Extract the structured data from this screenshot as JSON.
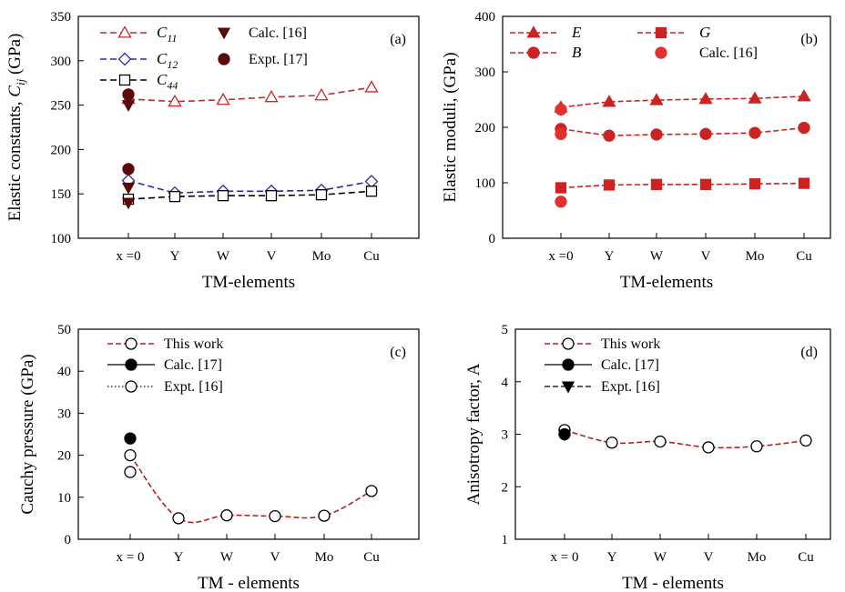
{
  "chart_data": [
    {
      "type": "line",
      "panel_label": "(a)",
      "xlabel": "TM-elements",
      "ylabel_main": "Elastic constants, ",
      "ylabel_sym": "C",
      "ylabel_sub": "ij",
      "ylabel_unit": " (GPa)",
      "categories": [
        "x =0",
        "Y",
        "W",
        "V",
        "Mo",
        "Cu"
      ],
      "ylim": [
        100,
        350
      ],
      "yticks": [
        100,
        150,
        200,
        250,
        300,
        350
      ],
      "series": [
        {
          "name": "C",
          "name_sub": "11",
          "color": "#c8282b",
          "dash": "7,4",
          "marker": "triangle-open",
          "values": [
            257,
            254,
            256,
            259,
            261,
            270
          ]
        },
        {
          "name": "C",
          "name_sub": "12",
          "color": "#2b2b9c",
          "dash": "7,4",
          "marker": "diamond-open",
          "values": [
            165,
            151,
            153,
            153,
            154,
            164
          ]
        },
        {
          "name": "C",
          "name_sub": "44",
          "color": "#000000",
          "dash": "7,4",
          "marker": "square-open",
          "values": [
            144,
            147,
            148,
            148,
            149,
            153
          ]
        }
      ],
      "reference_points": [
        {
          "name": "Calc. [16]",
          "marker": "triangle-down-filled",
          "color": "#5a0a0a",
          "values": [
            {
              "x": 0,
              "y": 250
            },
            {
              "x": 0,
              "y": 140
            },
            {
              "x": 0,
              "y": 157
            }
          ]
        },
        {
          "name": "Expt. [17]",
          "marker": "circle-filled",
          "color": "#5a0a0a",
          "values": [
            {
              "x": 0,
              "y": 262
            },
            {
              "x": 0,
              "y": 178
            }
          ]
        }
      ]
    },
    {
      "type": "line",
      "panel_label": "(b)",
      "xlabel": "TM-elements",
      "ylabel_main": "Elastic moduli, (GPa)",
      "categories": [
        "x =0",
        "Y",
        "W",
        "V",
        "Mo",
        "Cu"
      ],
      "ylim": [
        0,
        400
      ],
      "yticks": [
        0,
        100,
        200,
        300,
        400
      ],
      "series": [
        {
          "name": "E",
          "color": "#cc2222",
          "dash": "6,3",
          "marker": "triangle-filled",
          "values": [
            236,
            246,
            249,
            251,
            252,
            256
          ]
        },
        {
          "name": "B",
          "color": "#cc2222",
          "dash": "6,3",
          "marker": "circle-filled",
          "values": [
            197,
            185,
            187,
            188,
            190,
            199
          ]
        },
        {
          "name": "G",
          "color": "#cc2222",
          "dash": "6,3",
          "marker": "square-filled",
          "values": [
            91,
            96,
            97,
            97,
            98,
            99
          ]
        }
      ],
      "reference_points": [
        {
          "name": "Calc. [16]",
          "marker": "circle-filled",
          "color": "#e03030",
          "values": [
            {
              "x": 0,
              "y": 66
            },
            {
              "x": 0,
              "y": 188
            },
            {
              "x": 0,
              "y": 232
            }
          ]
        }
      ]
    },
    {
      "type": "line",
      "panel_label": "(c)",
      "xlabel": "TM - elements",
      "ylabel_main": "Cauchy pressure (GPa)",
      "categories": [
        "x = 0",
        "Y",
        "W",
        "V",
        "Mo",
        "Cu"
      ],
      "ylim": [
        0,
        50
      ],
      "yticks": [
        0,
        10,
        20,
        30,
        40,
        50
      ],
      "series": [
        {
          "name": "This work",
          "color": "#b22222",
          "dash": "6,3",
          "marker": "circle-open",
          "values": [
            20,
            5,
            5.7,
            5.5,
            5.6,
            11.5
          ]
        }
      ],
      "legend_extra": [
        {
          "name": "Calc. [17]",
          "marker": "circle-filled",
          "line": "solid"
        },
        {
          "name": "Expt. [16]",
          "marker": "circle-open",
          "line": "dotted"
        }
      ],
      "reference_points": [
        {
          "name": "Calc. [17]",
          "marker": "circle-filled",
          "color": "#000000",
          "values": [
            {
              "x": 0,
              "y": 24
            }
          ]
        },
        {
          "name": "Expt. [16]",
          "marker": "circle-open",
          "color": "#000000",
          "values": [
            {
              "x": 0,
              "y": 16
            }
          ]
        }
      ]
    },
    {
      "type": "line",
      "panel_label": "(d)",
      "xlabel": "TM - elements",
      "ylabel_main": "Anisotropy factor, A",
      "categories": [
        "x = 0",
        "Y",
        "W",
        "V",
        "Mo",
        "Cu"
      ],
      "ylim": [
        1,
        5
      ],
      "yticks": [
        1,
        2,
        3,
        4,
        5
      ],
      "series": [
        {
          "name": "This work",
          "color": "#b22222",
          "dash": "6,3",
          "marker": "circle-open",
          "values": [
            3.08,
            2.84,
            2.86,
            2.75,
            2.77,
            2.88
          ]
        }
      ],
      "legend_extra": [
        {
          "name": "Calc. [17]",
          "marker": "circle-filled",
          "line": "solid"
        },
        {
          "name": "Expt. [16]",
          "marker": "triangle-down-filled",
          "line": "dashed"
        }
      ],
      "reference_points": [
        {
          "name": "Calc. [17]",
          "marker": "circle-filled",
          "color": "#000000",
          "values": [
            {
              "x": 0,
              "y": 3.0
            }
          ]
        },
        {
          "name": "Expt. [16]",
          "marker": "triangle-down-filled",
          "color": "#000000",
          "values": [
            {
              "x": 0,
              "y": 2.99
            }
          ]
        }
      ]
    }
  ]
}
